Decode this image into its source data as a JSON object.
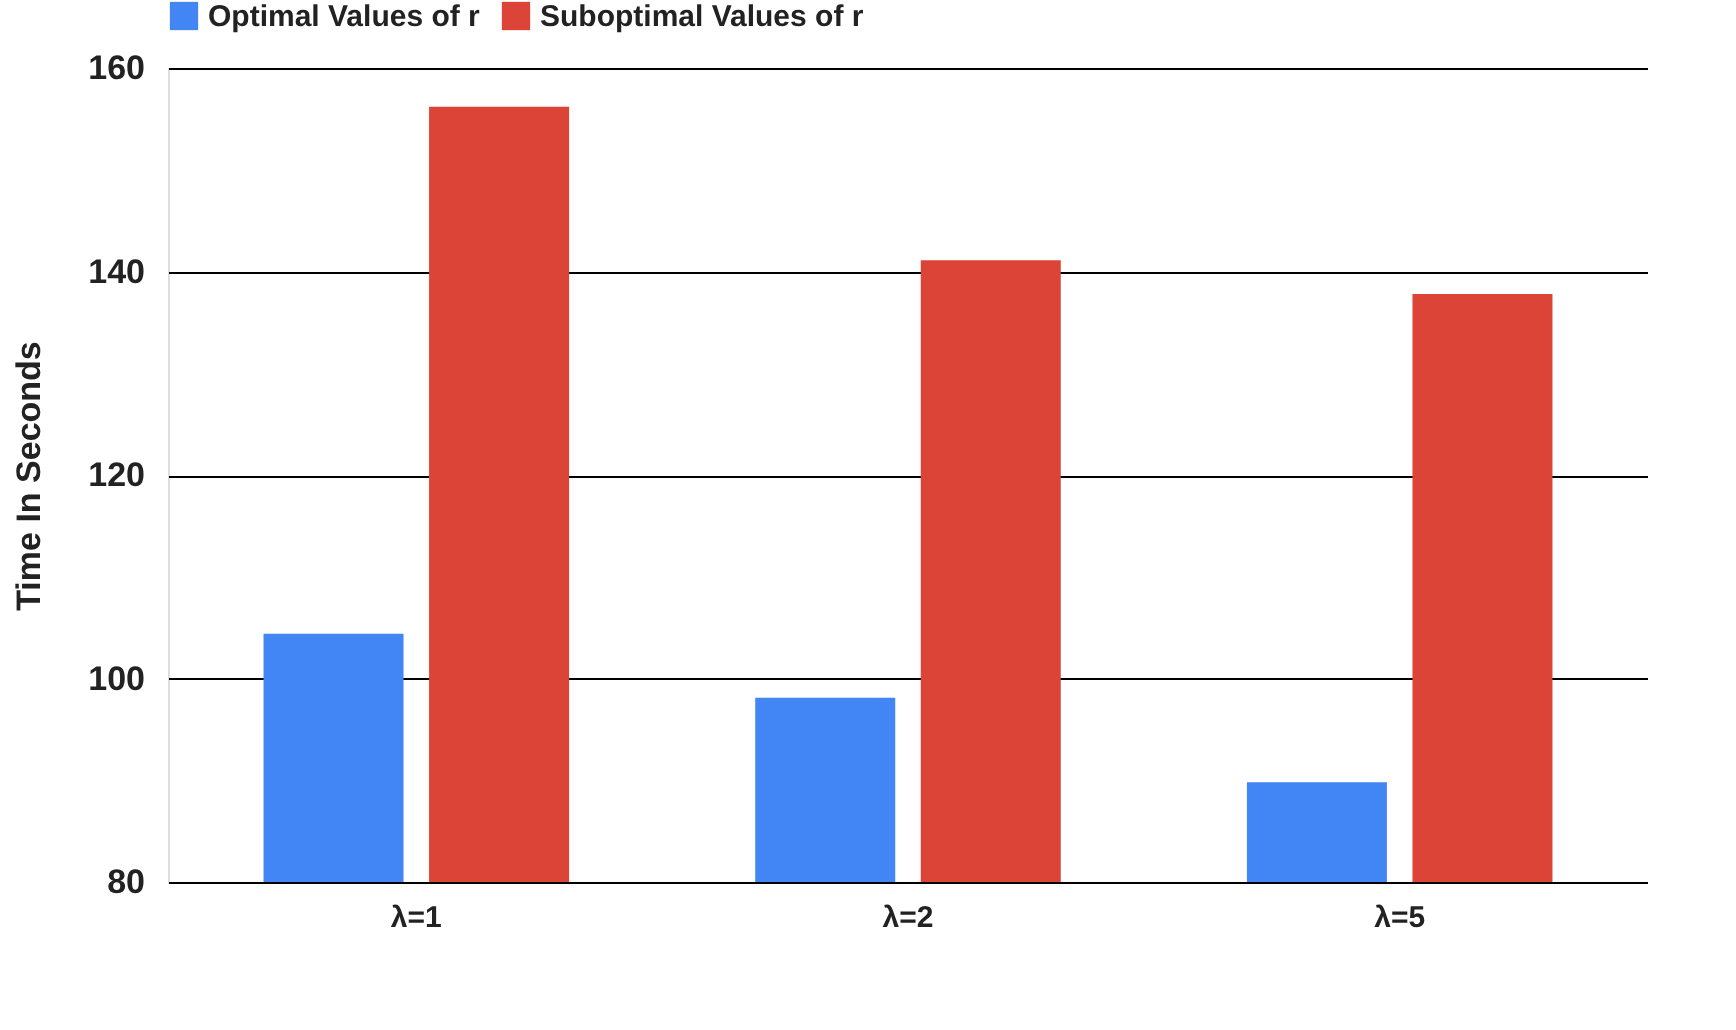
{
  "chart_data": {
    "type": "bar",
    "ylabel": "Time In Seconds",
    "categories": [
      "λ=1",
      "λ=2",
      "λ=5"
    ],
    "series": [
      {
        "name": "Optimal Values of r",
        "color": "#4285f4",
        "values": [
          104.4,
          98.1,
          89.8
        ]
      },
      {
        "name": "Suboptimal Values of r",
        "color": "#db4437",
        "values": [
          156.2,
          141.1,
          137.8
        ]
      }
    ],
    "ylim": [
      80,
      160
    ],
    "yticks": [
      80,
      100,
      120,
      140,
      160
    ],
    "grid": "y",
    "legend": "top"
  }
}
